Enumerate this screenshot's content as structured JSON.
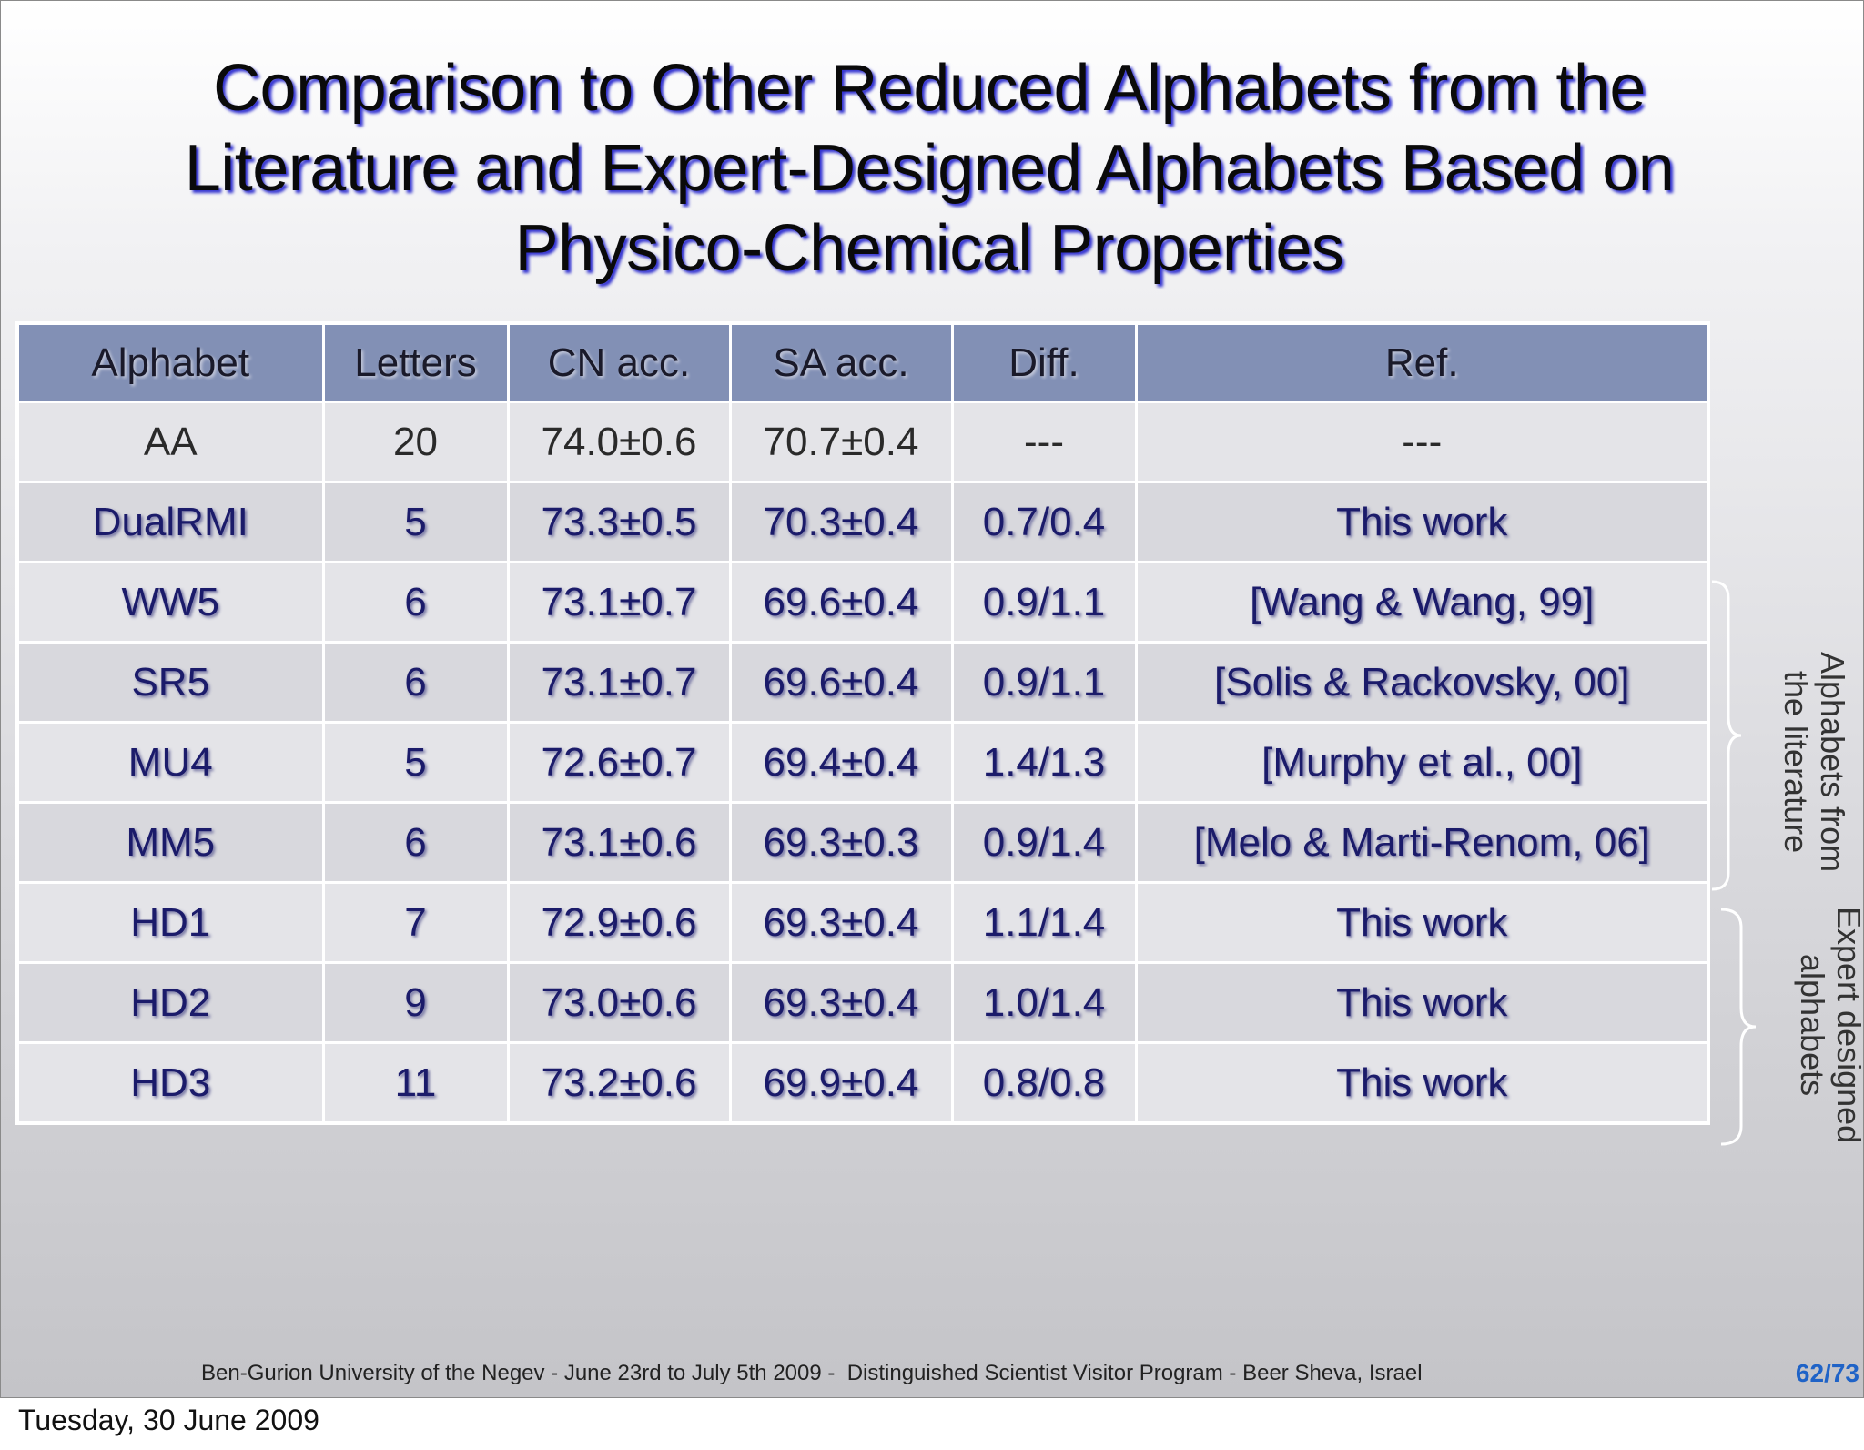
{
  "slide": {
    "title_lines": [
      "Comparison to Other Reduced Alphabets from the",
      "Literature and Expert-Designed Alphabets Based on",
      "Physico-Chemical Properties"
    ],
    "table": {
      "headers": [
        "Alphabet",
        "Letters",
        "CN acc.",
        "SA acc.",
        "Diff.",
        "Ref."
      ],
      "rows": [
        [
          "AA",
          "20",
          "74.0±0.6",
          "70.7±0.4",
          "---",
          "---"
        ],
        [
          "DualRMI",
          "5",
          "73.3±0.5",
          "70.3±0.4",
          "0.7/0.4",
          "This work"
        ],
        [
          "WW5",
          "6",
          "73.1±0.7",
          "69.6±0.4",
          "0.9/1.1",
          "[Wang & Wang, 99]"
        ],
        [
          "SR5",
          "6",
          "73.1±0.7",
          "69.6±0.4",
          "0.9/1.1",
          "[Solis & Rackovsky, 00]"
        ],
        [
          "MU4",
          "5",
          "72.6±0.7",
          "69.4±0.4",
          "1.4/1.3",
          "[Murphy et al., 00]"
        ],
        [
          "MM5",
          "6",
          "73.1±0.6",
          "69.3±0.3",
          "0.9/1.4",
          "[Melo & Marti-Renom, 06]"
        ],
        [
          "HD1",
          "7",
          "72.9±0.6",
          "69.3±0.4",
          "1.1/1.4",
          "This work"
        ],
        [
          "HD2",
          "9",
          "73.0±0.6",
          "69.3±0.4",
          "1.0/1.4",
          "This work"
        ],
        [
          "HD3",
          "11",
          "73.2±0.6",
          "69.9±0.4",
          "0.8/0.8",
          "This work"
        ]
      ]
    },
    "groups": {
      "literature": "Alphabets from\nthe  literature",
      "expert": "Expert designed\nalphabets"
    },
    "footer": "Ben-Gurion University of the Negev - June 23rd to July 5th 2009 -  Distinguished Scientist Visitor Program - Beer Sheva, Israel",
    "page_number": "62/73"
  },
  "date_caption": "Tuesday, 30 June 2009",
  "colors": {
    "header_bg": "#8290b5",
    "title_shadow": "#3030d0",
    "page_number": "#1f63c7"
  }
}
